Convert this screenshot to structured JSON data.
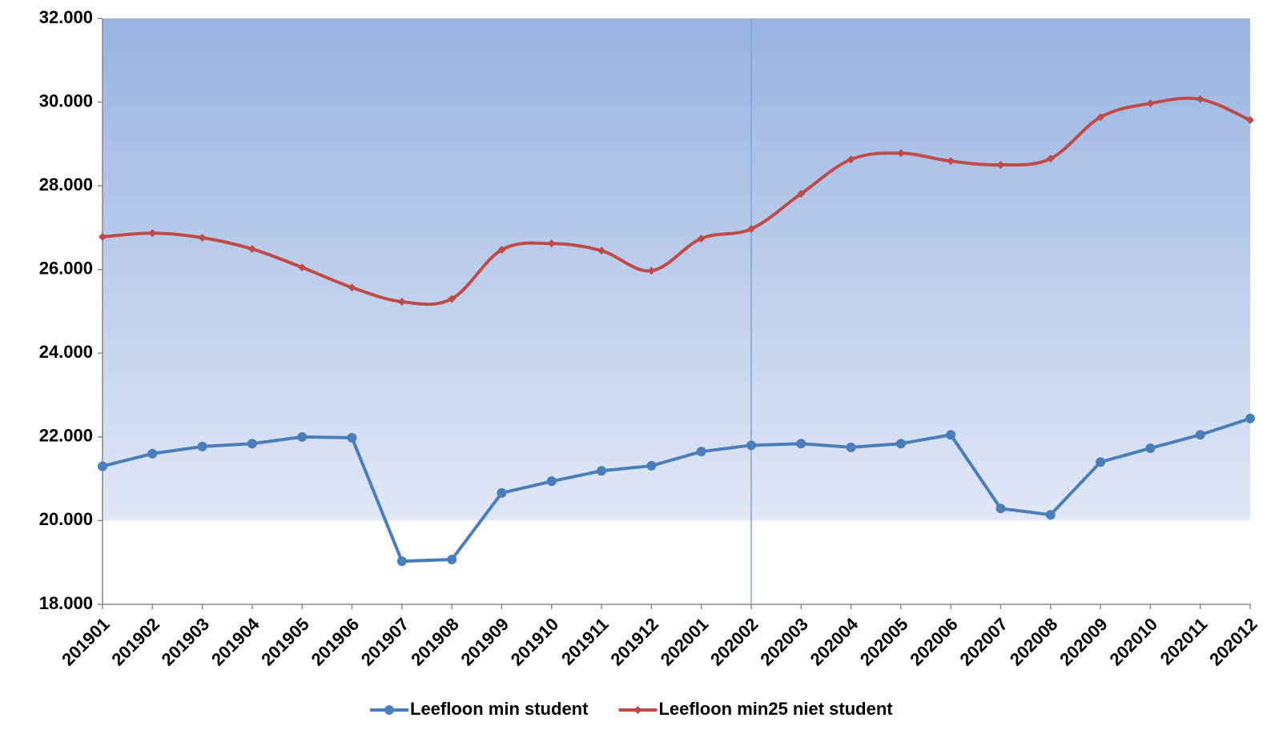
{
  "chart_data": {
    "type": "line",
    "categories": [
      "201901",
      "201902",
      "201903",
      "201904",
      "201905",
      "201906",
      "201907",
      "201908",
      "201909",
      "201910",
      "201911",
      "201912",
      "202001",
      "202002",
      "202003",
      "202004",
      "202005",
      "202006",
      "202007",
      "202008",
      "202009",
      "202010",
      "202011",
      "202012"
    ],
    "series": [
      {
        "name": "Leefloon min student",
        "color": "#4a7ebb",
        "marker": "circle",
        "values": [
          21300,
          21600,
          21770,
          21840,
          22000,
          21980,
          19030,
          19070,
          20660,
          20940,
          21190,
          21310,
          21650,
          21800,
          21840,
          21750,
          21840,
          22050,
          20290,
          20140,
          21400,
          21730,
          22050,
          22440
        ]
      },
      {
        "name": "Leefloon min25 niet student",
        "color": "#be4b48",
        "marker": "diamond",
        "values": [
          26780,
          26870,
          26760,
          26490,
          26050,
          25570,
          25230,
          25300,
          26470,
          26620,
          26450,
          25970,
          26740,
          26970,
          27810,
          28630,
          28780,
          28590,
          28500,
          28650,
          29640,
          29970,
          30070,
          29570
        ]
      }
    ],
    "ylim": [
      18000,
      32000
    ],
    "yticks": [
      {
        "value": 18000,
        "label": "18.000"
      },
      {
        "value": 20000,
        "label": "20.000"
      },
      {
        "value": 22000,
        "label": "22.000"
      },
      {
        "value": 24000,
        "label": "24.000"
      },
      {
        "value": 26000,
        "label": "26.000"
      },
      {
        "value": 28000,
        "label": "28.000"
      },
      {
        "value": 30000,
        "label": "30.000"
      },
      {
        "value": 32000,
        "label": "32.000"
      }
    ],
    "shaded_band": [
      20000,
      32000
    ],
    "marker_line": "202002",
    "legend": "bottom"
  }
}
